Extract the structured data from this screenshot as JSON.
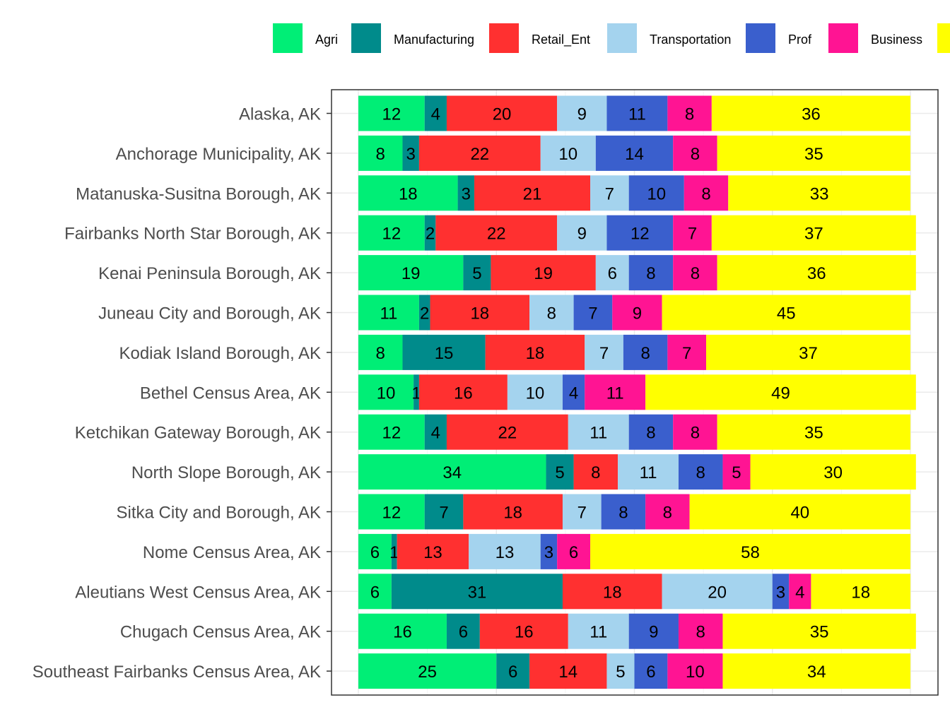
{
  "chart_data": {
    "type": "bar",
    "orientation": "horizontal",
    "stacked": true,
    "categories": [
      "Alaska, AK",
      "Anchorage Municipality, AK",
      "Matanuska-Susitna Borough, AK",
      "Fairbanks North Star Borough, AK",
      "Kenai Peninsula Borough, AK",
      "Juneau City and Borough, AK",
      "Kodiak Island Borough, AK",
      "Bethel Census Area, AK",
      "Ketchikan Gateway Borough, AK",
      "North Slope Borough, AK",
      "Sitka City and Borough, AK",
      "Nome Census Area, AK",
      "Aleutians West Census Area, AK",
      "Chugach Census Area, AK",
      "Southeast Fairbanks Census Area, AK"
    ],
    "series": [
      {
        "name": "Agri",
        "color": "#00EE76",
        "values": [
          12,
          8,
          18,
          12,
          19,
          11,
          8,
          10,
          12,
          34,
          12,
          6,
          6,
          16,
          25
        ]
      },
      {
        "name": "Manufacturing",
        "color": "#008B8B",
        "values": [
          4,
          3,
          3,
          2,
          5,
          2,
          15,
          1,
          4,
          5,
          7,
          1,
          31,
          6,
          6
        ]
      },
      {
        "name": "Retail_Ent",
        "color": "#FF3030",
        "values": [
          20,
          22,
          21,
          22,
          19,
          18,
          18,
          16,
          22,
          8,
          18,
          13,
          18,
          16,
          14
        ]
      },
      {
        "name": "Transportation",
        "color": "#A4D3EE",
        "values": [
          9,
          10,
          7,
          9,
          6,
          8,
          7,
          10,
          11,
          11,
          7,
          13,
          20,
          11,
          5
        ]
      },
      {
        "name": "Prof",
        "color": "#3A5FCD",
        "values": [
          11,
          14,
          10,
          12,
          8,
          7,
          8,
          4,
          8,
          8,
          8,
          3,
          3,
          9,
          6
        ]
      },
      {
        "name": "Business",
        "color": "#FF1493",
        "values": [
          8,
          8,
          8,
          7,
          8,
          9,
          7,
          11,
          8,
          5,
          8,
          6,
          4,
          8,
          10
        ]
      },
      {
        "name": "",
        "color": "#FFFF00",
        "values": [
          36,
          35,
          33,
          37,
          36,
          45,
          37,
          49,
          35,
          30,
          40,
          58,
          18,
          35,
          34
        ]
      }
    ],
    "xlim": [
      0,
      100
    ],
    "grid": true,
    "legend_position": "top"
  }
}
